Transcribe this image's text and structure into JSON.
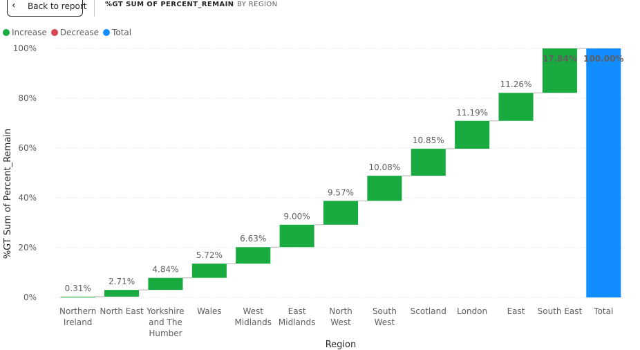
{
  "header": {
    "back_label": "Back to report",
    "title": "%GT SUM OF PERCENT_REMAIN",
    "subtitle": "BY REGION"
  },
  "legend": {
    "items": [
      {
        "label": "Increase",
        "color": "#1aab40"
      },
      {
        "label": "Decrease",
        "color": "#d64554"
      },
      {
        "label": "Total",
        "color": "#118dff"
      }
    ]
  },
  "chart_data": {
    "type": "waterfall",
    "xlabel": "Region",
    "ylabel": "%GT Sum of Percent_Remain",
    "ylim": [
      0,
      100
    ],
    "yticks": [
      "0%",
      "20%",
      "40%",
      "60%",
      "80%",
      "100%"
    ],
    "grid": true,
    "legend_position": "top-left",
    "categories": [
      [
        "Northern",
        "Ireland"
      ],
      [
        "North East"
      ],
      [
        "Yorkshire",
        "and The",
        "Humber"
      ],
      [
        "Wales"
      ],
      [
        "West",
        "Midlands"
      ],
      [
        "East",
        "Midlands"
      ],
      [
        "North",
        "West"
      ],
      [
        "South",
        "West"
      ],
      [
        "Scotland"
      ],
      [
        "London"
      ],
      [
        "East"
      ],
      [
        "South East"
      ],
      [
        "Total"
      ]
    ],
    "values": [
      0.31,
      2.71,
      4.84,
      5.72,
      6.63,
      9.0,
      9.57,
      10.08,
      10.85,
      11.19,
      11.26,
      17.84,
      100.0
    ],
    "labels": [
      "0.31%",
      "2.71%",
      "4.84%",
      "5.72%",
      "6.63%",
      "9.00%",
      "9.57%",
      "10.08%",
      "10.85%",
      "11.19%",
      "11.26%",
      "17.84%",
      "100.00%"
    ],
    "kinds": [
      "increase",
      "increase",
      "increase",
      "increase",
      "increase",
      "increase",
      "increase",
      "increase",
      "increase",
      "increase",
      "increase",
      "increase",
      "total"
    ],
    "colors": {
      "increase": "#1aab40",
      "decrease": "#d64554",
      "total": "#118dff"
    }
  }
}
